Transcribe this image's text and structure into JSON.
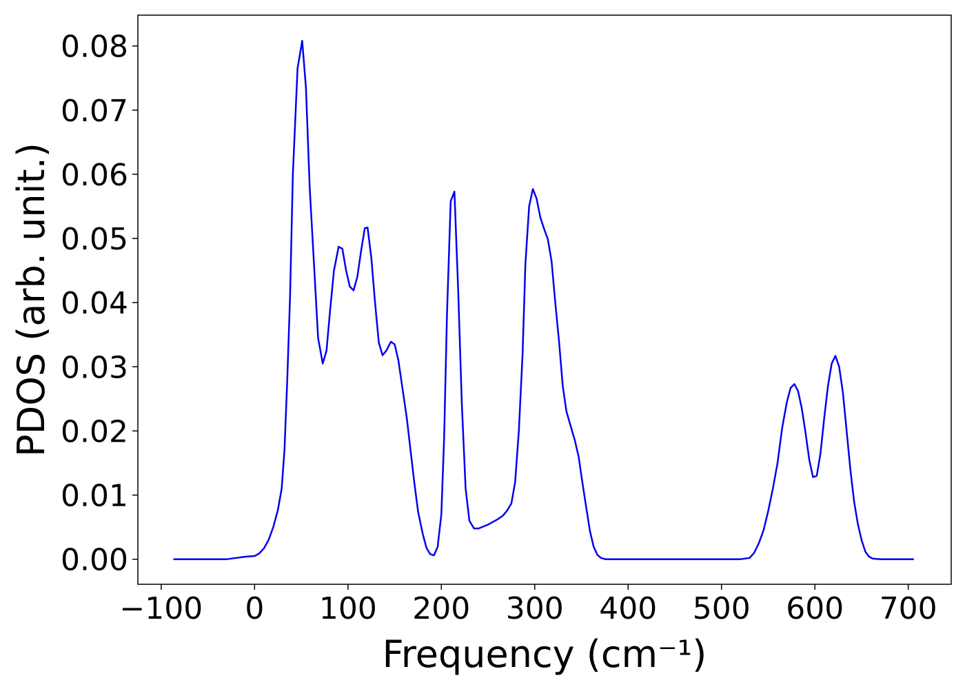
{
  "chart_data": {
    "type": "line",
    "xlabel": "Frequency (cm⁻¹)",
    "ylabel": "PDOS (arb. unit.)",
    "xlim": [
      -125,
      746
    ],
    "ylim": [
      -0.0039,
      0.0848
    ],
    "xticks": [
      {
        "value": -100,
        "label": "−100"
      },
      0,
      100,
      200,
      300,
      400,
      500,
      600,
      700
    ],
    "yticks": [
      {
        "value": 0,
        "label": "0.00"
      },
      0.01,
      0.02,
      0.03,
      0.04,
      0.05,
      0.06,
      0.07,
      0.08
    ],
    "series": [
      {
        "color": "#0000ee",
        "x": [
          -87,
          -30,
          -20,
          -10,
          0,
          5,
          10,
          15,
          20,
          25,
          29,
          32,
          35,
          38,
          41,
          46,
          51,
          55,
          59,
          64,
          68,
          73,
          77,
          81,
          85,
          90,
          94,
          98,
          102,
          106,
          110,
          114,
          118,
          121,
          125,
          129,
          133,
          137,
          141,
          146,
          150,
          154,
          158,
          163,
          167,
          171,
          175,
          180,
          184,
          188,
          192,
          196,
          200,
          203,
          206,
          210,
          214,
          218,
          222,
          226,
          230,
          235,
          240,
          250,
          260,
          266,
          270,
          275,
          279,
          283,
          287,
          290,
          294,
          298,
          302,
          306,
          310,
          314,
          318,
          322,
          326,
          330,
          334,
          339,
          343,
          347,
          351,
          355,
          359,
          363,
          367,
          371,
          376,
          520,
          530,
          535,
          540,
          545,
          550,
          555,
          560,
          565,
          570,
          574,
          578,
          582,
          586,
          590,
          594,
          598,
          602,
          606,
          610,
          614,
          618,
          622,
          626,
          630,
          634,
          638,
          642,
          646,
          650,
          654,
          658,
          662,
          670,
          706
        ],
        "values": [
          0,
          0,
          0.0002,
          0.0004,
          0.0005,
          0.0009,
          0.0017,
          0.003,
          0.005,
          0.0077,
          0.011,
          0.017,
          0.028,
          0.041,
          0.06,
          0.0765,
          0.0808,
          0.0735,
          0.058,
          0.045,
          0.0345,
          0.0305,
          0.0325,
          0.039,
          0.045,
          0.0487,
          0.0484,
          0.045,
          0.0425,
          0.0419,
          0.044,
          0.048,
          0.0516,
          0.0517,
          0.047,
          0.04,
          0.0338,
          0.0318,
          0.0325,
          0.0339,
          0.0335,
          0.031,
          0.027,
          0.022,
          0.017,
          0.012,
          0.0075,
          0.004,
          0.0018,
          0.0008,
          0.0006,
          0.0019,
          0.007,
          0.019,
          0.038,
          0.0558,
          0.0573,
          0.042,
          0.024,
          0.011,
          0.006,
          0.0048,
          0.0048,
          0.0054,
          0.0062,
          0.0068,
          0.0075,
          0.0087,
          0.012,
          0.02,
          0.032,
          0.046,
          0.055,
          0.0577,
          0.0562,
          0.0533,
          0.0515,
          0.0499,
          0.0465,
          0.04,
          0.034,
          0.027,
          0.023,
          0.0205,
          0.0185,
          0.016,
          0.012,
          0.0082,
          0.0045,
          0.002,
          0.0007,
          0.0002,
          0,
          0,
          0.0002,
          0.001,
          0.0025,
          0.0045,
          0.0075,
          0.011,
          0.015,
          0.0205,
          0.0245,
          0.0267,
          0.0273,
          0.0262,
          0.0235,
          0.0197,
          0.0155,
          0.0128,
          0.013,
          0.0165,
          0.022,
          0.027,
          0.0305,
          0.0317,
          0.03,
          0.026,
          0.02,
          0.014,
          0.009,
          0.0055,
          0.003,
          0.0012,
          0.0004,
          0.0001,
          0,
          0
        ]
      }
    ]
  }
}
